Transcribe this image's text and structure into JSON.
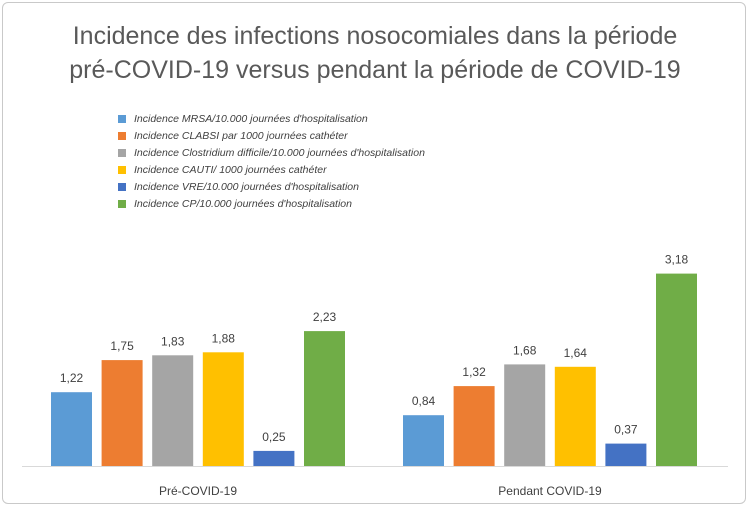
{
  "chart_data": {
    "type": "bar",
    "title_line1": "Incidence des infections nosocomiales dans la période",
    "title_line2": "pré-COVID-19 versus pendant la période de COVID-19",
    "categories": [
      "Pré-COVID-19",
      "Pendant COVID-19"
    ],
    "series": [
      {
        "name": "Incidence MRSA/10.000 journées d'hospitalisation",
        "color": "#5B9BD5",
        "values": [
          1.22,
          0.84
        ],
        "labels": [
          "1,22",
          "0,84"
        ]
      },
      {
        "name": "Incidence CLABSI par 1000 journées cathéter",
        "color": "#ED7D31",
        "values": [
          1.75,
          1.32
        ],
        "labels": [
          "1,75",
          "1,32"
        ]
      },
      {
        "name": "Incidence Clostridium difficile/10.000 journées d'hospitalisation",
        "color": "#A5A5A5",
        "values": [
          1.83,
          1.68
        ],
        "labels": [
          "1,83",
          "1,68"
        ]
      },
      {
        "name": "Incidence CAUTI/ 1000 journées cathéter",
        "color": "#FFC000",
        "values": [
          1.88,
          1.64
        ],
        "labels": [
          "1,88",
          "1,64"
        ]
      },
      {
        "name": "Incidence VRE/10.000 journées d'hospitalisation",
        "color": "#4472C4",
        "values": [
          0.25,
          0.37
        ],
        "labels": [
          "0,25",
          "0,37"
        ]
      },
      {
        "name": "Incidence CP/10.000 journées d'hospitalisation",
        "color": "#70AD47",
        "values": [
          2.23,
          3.18
        ],
        "labels": [
          "2,23",
          "3,18"
        ]
      }
    ],
    "ylim": [
      0,
      3.5
    ],
    "grid": false,
    "legend_position": "top-left"
  }
}
